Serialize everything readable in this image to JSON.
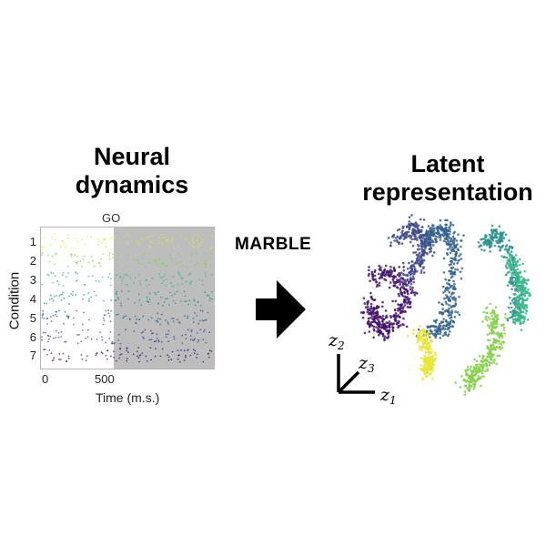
{
  "left_panel": {
    "title_line1": "Neural",
    "title_line2": "dynamics",
    "go_label": "GO",
    "y_axis_label": "Condition",
    "condition_ticks": [
      "1",
      "2",
      "3",
      "4",
      "5",
      "6",
      "7"
    ],
    "x_ticks": [
      "0",
      "500"
    ],
    "x_axis_label": "Time (m.s.)"
  },
  "middle": {
    "method_label": "MARBLE",
    "arrow_icon": "right-arrow-icon"
  },
  "right_panel": {
    "title_line1": "Latent",
    "title_line2": "representation",
    "axis_labels": {
      "z1": "z",
      "z1_sub": "1",
      "z2": "z",
      "z2_sub": "2",
      "z3": "z",
      "z3_sub": "3"
    }
  },
  "colors": {
    "condition_palette": [
      "#e8e53a",
      "#86d04b",
      "#3bb88a",
      "#2a8f8c",
      "#33638d",
      "#3e4a89",
      "#44136b"
    ],
    "go_shade": "#bdbdbd"
  }
}
